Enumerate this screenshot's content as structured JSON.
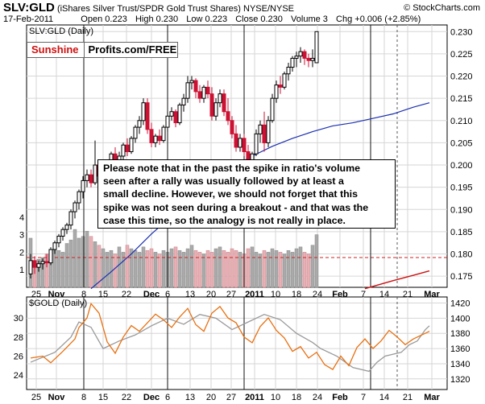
{
  "header": {
    "symbol": "SLV:GLD",
    "description": "(iShares Silver Trust/SPDR Gold Trust Shares)",
    "exchange": "NYSE/NYSE",
    "copyright": "© StockCharts.com",
    "date": "17-Feb-2011",
    "quote": {
      "open_label": "Open",
      "open": "0.223",
      "high_label": "High",
      "high": "0.230",
      "low_label": "Low",
      "low": "0.223",
      "close_label": "Close",
      "close": "0.230",
      "volume_label": "Volume",
      "volume": "3",
      "chg_label": "Chg",
      "chg": "+0.006 (+2.85%)"
    }
  },
  "logo": {
    "part1": "Sunshine",
    "part2": "Profits.com/FREE"
  },
  "annotation": {
    "lines": [
      "Please note that in the past the spike in ratio's volume",
      "seen after a rally was usually followed by at least a",
      "small decline. However, we should not forget that this",
      "spike was not seen during a breakout - and that was the",
      "case this time, so the analogy is not really in place."
    ]
  },
  "colors": {
    "up": "#000000",
    "down": "#cc1133",
    "ma_short": "#1a2fb0",
    "ma_long": "#cc1111",
    "vol_up": "#aaaaaa",
    "vol_down": "#e8b0b4",
    "gold": "#999999",
    "ratio_line": "#e87010",
    "grid": "#d6d6d6",
    "marker": "#111111"
  },
  "chart_data": [
    {
      "type": "candlestick",
      "label": "SLV:GLD (Daily)",
      "x_labels": [
        "25",
        "Nov",
        "8",
        "15",
        "22",
        "Dec",
        "6",
        "13",
        "20",
        "27",
        "2011",
        "10",
        "18",
        "24",
        "Feb",
        "7",
        "14",
        "21",
        "Mar"
      ],
      "y_ticks": [
        "0.175",
        "0.180",
        "0.185",
        "0.190",
        "0.195",
        "0.200",
        "0.205",
        "0.210",
        "0.215",
        "0.220",
        "0.225",
        "0.230"
      ],
      "ylim": [
        0.1725,
        0.2315
      ],
      "reference_line": 0.1792,
      "volume_ticks": [
        "1",
        "2",
        "3",
        "4"
      ],
      "volume_ylim": [
        0,
        5
      ],
      "ohlc": [
        [
          0.1755,
          0.18,
          0.1745,
          0.1785
        ],
        [
          0.1785,
          0.1795,
          0.1755,
          0.177
        ],
        [
          0.177,
          0.1785,
          0.176,
          0.1778
        ],
        [
          0.1778,
          0.179,
          0.1765,
          0.1783
        ],
        [
          0.1783,
          0.18,
          0.177,
          0.178
        ],
        [
          0.178,
          0.1815,
          0.1775,
          0.181
        ],
        [
          0.181,
          0.183,
          0.18,
          0.1825
        ],
        [
          0.1825,
          0.1845,
          0.1815,
          0.184
        ],
        [
          0.184,
          0.186,
          0.183,
          0.1855
        ],
        [
          0.1855,
          0.187,
          0.1845,
          0.1865
        ],
        [
          0.1865,
          0.19,
          0.1855,
          0.1895
        ],
        [
          0.1895,
          0.192,
          0.188,
          0.1915
        ],
        [
          0.1915,
          0.1945,
          0.19,
          0.194
        ],
        [
          0.194,
          0.1975,
          0.1925,
          0.1965
        ],
        [
          0.1965,
          0.199,
          0.195,
          0.1978
        ],
        [
          0.1978,
          0.199,
          0.195,
          0.196
        ],
        [
          0.196,
          0.2055,
          0.1955,
          0.2
        ],
        [
          0.2,
          0.201,
          0.1965,
          0.1975
        ],
        [
          0.1975,
          0.199,
          0.1955,
          0.198
        ],
        [
          0.198,
          0.201,
          0.1975,
          0.2005
        ],
        [
          0.2005,
          0.203,
          0.1995,
          0.2025
        ],
        [
          0.2025,
          0.204,
          0.2,
          0.201
        ],
        [
          0.201,
          0.203,
          0.1995,
          0.202
        ],
        [
          0.202,
          0.205,
          0.201,
          0.2045
        ],
        [
          0.2045,
          0.206,
          0.202,
          0.203
        ],
        [
          0.203,
          0.2065,
          0.2025,
          0.206
        ],
        [
          0.206,
          0.209,
          0.205,
          0.2085
        ],
        [
          0.2085,
          0.211,
          0.207,
          0.21
        ],
        [
          0.21,
          0.215,
          0.209,
          0.214
        ],
        [
          0.214,
          0.215,
          0.207,
          0.208
        ],
        [
          0.208,
          0.2095,
          0.204,
          0.205
        ],
        [
          0.205,
          0.207,
          0.204,
          0.2065
        ],
        [
          0.2065,
          0.208,
          0.2045,
          0.2055
        ],
        [
          0.2055,
          0.209,
          0.205,
          0.2085
        ],
        [
          0.2085,
          0.212,
          0.2075,
          0.211
        ],
        [
          0.211,
          0.213,
          0.21,
          0.212
        ],
        [
          0.212,
          0.2125,
          0.2085,
          0.2095
        ],
        [
          0.2095,
          0.214,
          0.209,
          0.2135
        ],
        [
          0.2135,
          0.216,
          0.212,
          0.215
        ],
        [
          0.215,
          0.22,
          0.214,
          0.2185
        ],
        [
          0.2185,
          0.22,
          0.217,
          0.219
        ],
        [
          0.219,
          0.2195,
          0.215,
          0.2165
        ],
        [
          0.2165,
          0.218,
          0.214,
          0.215
        ],
        [
          0.215,
          0.218,
          0.214,
          0.2175
        ],
        [
          0.2175,
          0.219,
          0.215,
          0.216
        ],
        [
          0.216,
          0.2175,
          0.21,
          0.211
        ],
        [
          0.211,
          0.215,
          0.21,
          0.214
        ],
        [
          0.214,
          0.217,
          0.213,
          0.216
        ],
        [
          0.216,
          0.217,
          0.211,
          0.212
        ],
        [
          0.212,
          0.215,
          0.209,
          0.21
        ],
        [
          0.21,
          0.211,
          0.206,
          0.207
        ],
        [
          0.207,
          0.209,
          0.203,
          0.204
        ],
        [
          0.204,
          0.207,
          0.203,
          0.206
        ],
        [
          0.206,
          0.207,
          0.202,
          0.203
        ],
        [
          0.203,
          0.2045,
          0.2,
          0.201
        ],
        [
          0.201,
          0.203,
          0.199,
          0.2025
        ],
        [
          0.2025,
          0.208,
          0.202,
          0.207
        ],
        [
          0.207,
          0.21,
          0.205,
          0.209
        ],
        [
          0.209,
          0.212,
          0.203,
          0.205
        ],
        [
          0.205,
          0.211,
          0.204,
          0.21
        ],
        [
          0.21,
          0.216,
          0.2095,
          0.215
        ],
        [
          0.215,
          0.219,
          0.214,
          0.218
        ],
        [
          0.218,
          0.22,
          0.216,
          0.2175
        ],
        [
          0.2175,
          0.221,
          0.217,
          0.2205
        ],
        [
          0.2205,
          0.223,
          0.219,
          0.222
        ],
        [
          0.222,
          0.2245,
          0.221,
          0.224
        ],
        [
          0.224,
          0.2255,
          0.222,
          0.2245
        ],
        [
          0.2245,
          0.2265,
          0.223,
          0.2255
        ],
        [
          0.2255,
          0.226,
          0.2225,
          0.224
        ],
        [
          0.224,
          0.225,
          0.222,
          0.2235
        ],
        [
          0.2235,
          0.226,
          0.222,
          0.224
        ],
        [
          0.223,
          0.23,
          0.223,
          0.23
        ]
      ],
      "ma50": [
        [
          15,
          0.1722
        ],
        [
          20,
          0.176
        ],
        [
          25,
          0.18
        ],
        [
          30,
          0.1845
        ],
        [
          35,
          0.1885
        ],
        [
          40,
          0.1925
        ],
        [
          45,
          0.196
        ],
        [
          50,
          0.1995
        ],
        [
          55,
          0.202
        ],
        [
          60,
          0.2042
        ],
        [
          65,
          0.206
        ],
        [
          70,
          0.2075
        ],
        [
          75,
          0.2088
        ],
        [
          80,
          0.2095
        ],
        [
          85,
          0.2105
        ],
        [
          90,
          0.2115
        ],
        [
          95,
          0.213
        ],
        [
          99,
          0.214
        ]
      ],
      "ma200": [
        [
          83,
          0.1722
        ],
        [
          90,
          0.174
        ],
        [
          95,
          0.1752
        ],
        [
          99,
          0.1762
        ]
      ],
      "volume": [
        2.8,
        1.5,
        1.6,
        1.7,
        1.9,
        2.1,
        2.3,
        2.1,
        2.0,
        2.5,
        2.7,
        3.3,
        2.8,
        2.9,
        3.2,
        2.9,
        2.6,
        2.4,
        2.2,
        2.0,
        2.1,
        1.9,
        2.3,
        2.0,
        2.4,
        2.2,
        2.1,
        2.0,
        2.3,
        2.1,
        2.2,
        2.0,
        1.9,
        2.1,
        2.0,
        2.2,
        2.3,
        2.1,
        2.0,
        2.2,
        2.4,
        2.1,
        2.0,
        1.9,
        2.1,
        2.0,
        2.2,
        2.3,
        2.1,
        2.0,
        2.2,
        2.1,
        2.0,
        1.9,
        2.2,
        2.3,
        2.0,
        1.9,
        2.1,
        2.0,
        2.2,
        2.1,
        2.0,
        1.9,
        2.1,
        2.0,
        2.2,
        2.3,
        2.0,
        1.9,
        2.4,
        3.0
      ],
      "event_lines": [
        "Nov 8",
        "Dec 6",
        "Dec 31",
        "Feb 8"
      ],
      "current_line": "Feb 17"
    },
    {
      "type": "line",
      "label": "$GOLD (Daily)",
      "x_labels": [
        "25",
        "Nov",
        "8",
        "15",
        "22",
        "Dec",
        "6",
        "13",
        "20",
        "27",
        "2011",
        "10",
        "18",
        "24",
        "Feb",
        "7",
        "14",
        "21",
        "Mar"
      ],
      "left_ticks": [
        "24",
        "26",
        "28",
        "30"
      ],
      "right_ticks": [
        "1320",
        "1340",
        "1360",
        "1380",
        "1400",
        "1420"
      ],
      "left_ylim": [
        22.5,
        32.2
      ],
      "right_ylim": [
        1306,
        1428
      ],
      "series": [
        {
          "name": "$GOLD",
          "axis": "right",
          "values": [
            [
              0,
              1342
            ],
            [
              6,
              1355
            ],
            [
              10,
              1375
            ],
            [
              12,
              1395
            ],
            [
              15,
              1388
            ],
            [
              18,
              1360
            ],
            [
              22,
              1370
            ],
            [
              26,
              1378
            ],
            [
              30,
              1390
            ],
            [
              34,
              1400
            ],
            [
              38,
              1392
            ],
            [
              42,
              1405
            ],
            [
              46,
              1400
            ],
            [
              50,
              1385
            ],
            [
              54,
              1395
            ],
            [
              58,
              1405
            ],
            [
              62,
              1398
            ],
            [
              66,
              1380
            ],
            [
              70,
              1368
            ],
            [
              72,
              1360
            ],
            [
              76,
              1350
            ],
            [
              80,
              1335
            ],
            [
              84,
              1330
            ],
            [
              86,
              1342
            ],
            [
              88,
              1350
            ],
            [
              92,
              1355
            ],
            [
              94,
              1365
            ],
            [
              96,
              1370
            ],
            [
              98,
              1385
            ],
            [
              99,
              1390
            ]
          ]
        },
        {
          "name": "SLV:GLD",
          "axis": "left",
          "values": [
            [
              0,
              25.8
            ],
            [
              3,
              26.0
            ],
            [
              5,
              25.3
            ],
            [
              8,
              26.5
            ],
            [
              11,
              27.8
            ],
            [
              12,
              29.0
            ],
            [
              14,
              30.0
            ],
            [
              15,
              31.5
            ],
            [
              17,
              30.5
            ],
            [
              19,
              27.5
            ],
            [
              21,
              26.3
            ],
            [
              23,
              28.0
            ],
            [
              25,
              29.2
            ],
            [
              27,
              28.6
            ],
            [
              29,
              29.5
            ],
            [
              31,
              30.4
            ],
            [
              33,
              29.8
            ],
            [
              35,
              29.0
            ],
            [
              37,
              30.1
            ],
            [
              39,
              31.0
            ],
            [
              41,
              29.3
            ],
            [
              43,
              28.6
            ],
            [
              45,
              30.5
            ],
            [
              47,
              31.2
            ],
            [
              49,
              30.0
            ],
            [
              51,
              29.5
            ],
            [
              53,
              28.0
            ],
            [
              55,
              27.4
            ],
            [
              57,
              29.1
            ],
            [
              59,
              30.0
            ],
            [
              61,
              28.7
            ],
            [
              63,
              27.9
            ],
            [
              65,
              26.5
            ],
            [
              67,
              27.0
            ],
            [
              69,
              25.8
            ],
            [
              71,
              26.4
            ],
            [
              73,
              25.1
            ],
            [
              75,
              24.6
            ],
            [
              77,
              26.0
            ],
            [
              79,
              25.0
            ],
            [
              81,
              26.9
            ],
            [
              83,
              27.8
            ],
            [
              85,
              26.8
            ],
            [
              87,
              27.6
            ],
            [
              89,
              28.7
            ],
            [
              91,
              28.0
            ],
            [
              93,
              27.2
            ],
            [
              95,
              27.8
            ],
            [
              97,
              28.2
            ],
            [
              99,
              28.6
            ]
          ]
        }
      ],
      "event_lines": [
        "Nov 8",
        "Dec 6",
        "Dec 31",
        "Feb 8"
      ],
      "current_line": "Feb 17"
    }
  ]
}
